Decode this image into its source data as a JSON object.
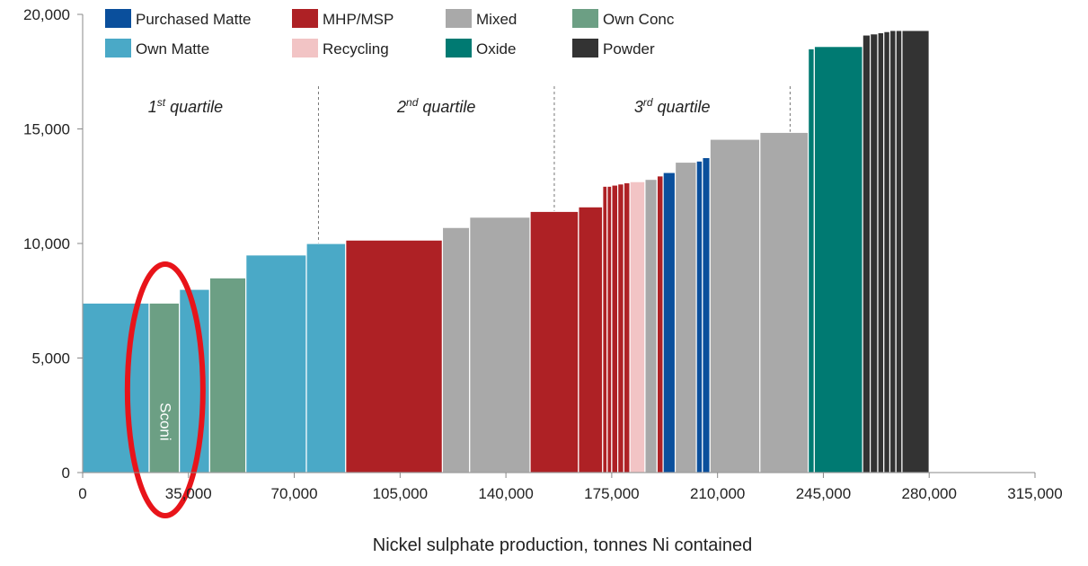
{
  "chart_data": {
    "type": "bar",
    "subtype": "cost-curve (variable-width bars)",
    "xlabel": "Nickel sulphate production, tonnes Ni contained",
    "ylabel": "",
    "xlim": [
      0,
      315000
    ],
    "ylim": [
      0,
      20000
    ],
    "x_ticks": [
      0,
      35000,
      70000,
      105000,
      140000,
      175000,
      210000,
      245000,
      280000,
      315000
    ],
    "x_tick_labels": [
      "0",
      "35,000",
      "70,000",
      "105,000",
      "140,000",
      "175,000",
      "210,000",
      "245,000",
      "280,000",
      "315,000"
    ],
    "y_ticks": [
      0,
      5000,
      10000,
      15000,
      20000
    ],
    "y_tick_labels": [
      "0",
      "5,000",
      "10,000",
      "15,000",
      "20,000"
    ],
    "grid": false,
    "legend_position": "top",
    "legend": [
      {
        "key": "purchased_matte",
        "label": "Purchased Matte",
        "color": "#0a4f9c"
      },
      {
        "key": "mhp_msp",
        "label": "MHP/MSP",
        "color": "#ae2125"
      },
      {
        "key": "mixed",
        "label": "Mixed",
        "color": "#a9a9a9"
      },
      {
        "key": "own_conc",
        "label": "Own Conc",
        "color": "#6c9f84"
      },
      {
        "key": "own_matte",
        "label": "Own Matte",
        "color": "#4aa9c7"
      },
      {
        "key": "recycling",
        "label": "Recycling",
        "color": "#f2c4c5"
      },
      {
        "key": "oxide",
        "label": "Oxide",
        "color": "#007a72"
      },
      {
        "key": "powder",
        "label": "Powder",
        "color": "#333333"
      }
    ],
    "quartiles": [
      {
        "label_main": "1",
        "label_sup": "st",
        "label_rest": " quartile",
        "x_divider": 78000,
        "x_label": 34000
      },
      {
        "label_main": "2",
        "label_sup": "nd",
        "label_rest": " quartile",
        "x_divider": 156000,
        "x_label": 117000
      },
      {
        "label_main": "3",
        "label_sup": "rd",
        "label_rest": " quartile",
        "x_divider": 234000,
        "x_label": 195000
      }
    ],
    "bars": [
      {
        "x0": 0,
        "x1": 22000,
        "y": 7400,
        "type": "own_matte"
      },
      {
        "x0": 22000,
        "x1": 32000,
        "y": 7400,
        "type": "own_conc",
        "label": "Sconi"
      },
      {
        "x0": 32000,
        "x1": 42000,
        "y": 8000,
        "type": "own_matte"
      },
      {
        "x0": 42000,
        "x1": 54000,
        "y": 8500,
        "type": "own_conc"
      },
      {
        "x0": 54000,
        "x1": 74000,
        "y": 9500,
        "type": "own_matte"
      },
      {
        "x0": 74000,
        "x1": 87000,
        "y": 10000,
        "type": "own_matte"
      },
      {
        "x0": 87000,
        "x1": 119000,
        "y": 10150,
        "type": "mhp_msp"
      },
      {
        "x0": 119000,
        "x1": 128000,
        "y": 10700,
        "type": "mixed"
      },
      {
        "x0": 128000,
        "x1": 148000,
        "y": 11150,
        "type": "mixed"
      },
      {
        "x0": 148000,
        "x1": 164000,
        "y": 11400,
        "type": "mhp_msp"
      },
      {
        "x0": 164000,
        "x1": 172000,
        "y": 11600,
        "type": "mhp_msp"
      },
      {
        "x0": 172000,
        "x1": 173500,
        "y": 12500,
        "type": "mhp_msp"
      },
      {
        "x0": 173500,
        "x1": 175000,
        "y": 12500,
        "type": "mhp_msp"
      },
      {
        "x0": 175000,
        "x1": 177000,
        "y": 12550,
        "type": "mhp_msp"
      },
      {
        "x0": 177000,
        "x1": 179000,
        "y": 12600,
        "type": "mhp_msp"
      },
      {
        "x0": 179000,
        "x1": 181000,
        "y": 12650,
        "type": "mhp_msp"
      },
      {
        "x0": 181000,
        "x1": 186000,
        "y": 12700,
        "type": "recycling"
      },
      {
        "x0": 186000,
        "x1": 190000,
        "y": 12800,
        "type": "mixed"
      },
      {
        "x0": 190000,
        "x1": 192000,
        "y": 12950,
        "type": "mhp_msp"
      },
      {
        "x0": 192000,
        "x1": 196000,
        "y": 13100,
        "type": "purchased_matte"
      },
      {
        "x0": 196000,
        "x1": 203000,
        "y": 13550,
        "type": "mixed"
      },
      {
        "x0": 203000,
        "x1": 205000,
        "y": 13600,
        "type": "purchased_matte"
      },
      {
        "x0": 205000,
        "x1": 207500,
        "y": 13750,
        "type": "purchased_matte"
      },
      {
        "x0": 207500,
        "x1": 224000,
        "y": 14550,
        "type": "mixed"
      },
      {
        "x0": 224000,
        "x1": 240000,
        "y": 14850,
        "type": "mixed"
      },
      {
        "x0": 240000,
        "x1": 242000,
        "y": 18500,
        "type": "oxide"
      },
      {
        "x0": 242000,
        "x1": 258000,
        "y": 18600,
        "type": "oxide"
      },
      {
        "x0": 258000,
        "x1": 260500,
        "y": 19100,
        "type": "powder"
      },
      {
        "x0": 260500,
        "x1": 263000,
        "y": 19150,
        "type": "powder"
      },
      {
        "x0": 263000,
        "x1": 265000,
        "y": 19200,
        "type": "powder"
      },
      {
        "x0": 265000,
        "x1": 267000,
        "y": 19250,
        "type": "powder"
      },
      {
        "x0": 267000,
        "x1": 269000,
        "y": 19300,
        "type": "powder"
      },
      {
        "x0": 269000,
        "x1": 271000,
        "y": 19300,
        "type": "powder"
      },
      {
        "x0": 271000,
        "x1": 280000,
        "y": 19300,
        "type": "powder"
      }
    ],
    "highlight": {
      "bar_index": 1,
      "shape": "ellipse",
      "color": "#e8141a"
    }
  }
}
